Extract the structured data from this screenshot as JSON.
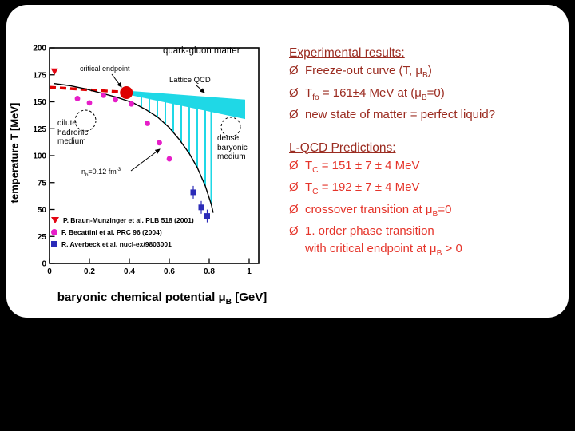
{
  "slide": {
    "background": "#000000",
    "card": "#ffffff"
  },
  "right_panel": {
    "sections": [
      {
        "title": "Experimental results:",
        "color": "#9b2c21",
        "item_color": "#9b2c21",
        "items": [
          {
            "bullet": "Ø",
            "text": "Freeze-out curve (T, μ_{B})"
          },
          {
            "bullet": "Ø",
            "text": "T_{fo} = 161±4 MeV at (μ_{B}=0)"
          },
          {
            "bullet": "Ø",
            "text": "new state of matter = perfect liquid?"
          }
        ]
      },
      {
        "title": "L-QCD Predictions:",
        "color": "#9b2c21",
        "item_color": "#e5342a",
        "items": [
          {
            "bullet": "Ø",
            "text": "T_{C} = 151 ± 7 ± 4 MeV"
          },
          {
            "bullet": "Ø",
            "text": "T_{C} = 192 ± 7 ± 4 MeV"
          },
          {
            "bullet": "Ø",
            "text": "crossover transition at μ_{B}=0"
          },
          {
            "bullet": "Ø",
            "text": "1. order phase transition"
          },
          {
            "bullet": "",
            "text": "with critical endpoint at  μ_{B} > 0"
          }
        ]
      }
    ]
  },
  "chart_data": {
    "type": "scatter",
    "title": "",
    "xlabel": "baryonic chemical potential μ_{B} [GeV]",
    "ylabel": "temperature T [MeV]",
    "xlim": [
      0,
      1.05
    ],
    "ylim": [
      0,
      200
    ],
    "grid": false,
    "legend_position": "lower-left",
    "xticks": [
      {
        "v": 0,
        "label": "0"
      },
      {
        "v": 0.2,
        "label": "0.2"
      },
      {
        "v": 0.4,
        "label": "0.4"
      },
      {
        "v": 0.6,
        "label": "0.6"
      },
      {
        "v": 0.8,
        "label": "0.8"
      },
      {
        "v": 1,
        "label": "1"
      }
    ],
    "yticks": [
      0,
      25,
      50,
      75,
      100,
      125,
      150,
      175,
      200
    ],
    "annotations": {
      "quark_gluon_matter": "quark-gluon matter",
      "critical_endpoint": "critical endpoint",
      "lattice_qcd": "Lattice QCD",
      "dilute": "dilute\nhadronic\nmedium",
      "dense": "dense\nbaryonic\nmedium",
      "density": "n_{b}=0.12 fm^{-3}"
    },
    "freezeout_curve": [
      [
        0.02,
        167
      ],
      [
        0.1,
        165
      ],
      [
        0.18,
        162
      ],
      [
        0.26,
        158
      ],
      [
        0.34,
        154
      ],
      [
        0.42,
        149
      ],
      [
        0.48,
        143
      ],
      [
        0.54,
        136
      ],
      [
        0.6,
        126
      ],
      [
        0.65,
        115
      ],
      [
        0.7,
        102
      ],
      [
        0.74,
        89
      ],
      [
        0.78,
        72
      ],
      [
        0.81,
        55
      ],
      [
        0.82,
        47
      ]
    ],
    "extrapolation_line": {
      "from": [
        0.0,
        163.5
      ],
      "to": [
        0.37,
        159
      ],
      "color": "#e00000"
    },
    "critical_endpoint_point": {
      "mu": 0.385,
      "T": 158.5,
      "color": "#dd0000"
    },
    "lattice_band": {
      "color": "#1fd8e6",
      "top": [
        [
          0.41,
          160
        ],
        [
          0.98,
          152
        ]
      ],
      "bottom": [
        [
          0.41,
          156
        ],
        [
          0.98,
          134
        ]
      ]
    },
    "band_drop_lines": [
      0.46,
      0.5,
      0.54,
      0.58,
      0.62,
      0.66,
      0.7,
      0.74,
      0.78,
      0.81
    ],
    "series": [
      {
        "name": "P. Braun-Munzinger et al. PLB 518 (2001)",
        "marker": "triangle-down",
        "color": "#e30613",
        "points": [
          [
            0.025,
            178
          ]
        ]
      },
      {
        "name": "F. Becattini et al. PRC 96 (2004)",
        "marker": "circle",
        "color": "#e61ec8",
        "points": [
          [
            0.14,
            153
          ],
          [
            0.2,
            149
          ],
          [
            0.27,
            156
          ],
          [
            0.33,
            152
          ],
          [
            0.41,
            148
          ],
          [
            0.49,
            130
          ],
          [
            0.55,
            112
          ],
          [
            0.6,
            97
          ]
        ]
      },
      {
        "name": "R. Averbeck et al. nucl-ex/9803001",
        "marker": "square",
        "color": "#2b2bb8",
        "points": [
          [
            0.72,
            66
          ],
          [
            0.76,
            52
          ],
          [
            0.79,
            44
          ]
        ]
      }
    ]
  }
}
